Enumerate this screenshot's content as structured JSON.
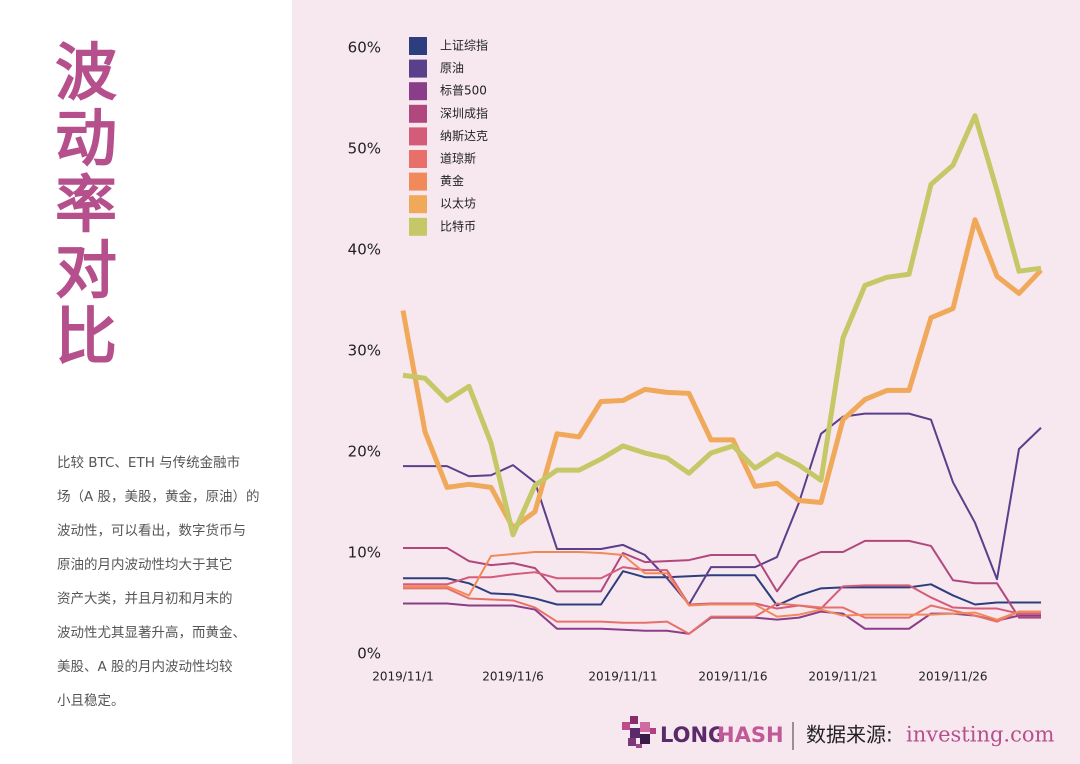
{
  "sidebar": {
    "title": "波动率对比",
    "paragraph": [
      "比较 BTC、ETH 与传统金融市",
      "场（A 股，美股，黄金，原油）的",
      "波动性，可以看出，数字货币与",
      "原油的月内波动性均大于其它",
      "资产大类，并且月初和月末的",
      "波动性尤其显著升高，而黄金、",
      "美股、A 股的月内波动性均较",
      "小且稳定。"
    ]
  },
  "footer": {
    "logo_left": "LONG",
    "logo_right": "HASH",
    "source_label": "数据来源:",
    "source": "investing.com"
  },
  "chart_data": {
    "type": "line",
    "categories": [
      "2019/11/1",
      null,
      null,
      null,
      null,
      "2019/11/6",
      null,
      null,
      null,
      null,
      "2019/11/11",
      null,
      null,
      null,
      null,
      "2019/11/16",
      null,
      null,
      null,
      null,
      "2019/11/21",
      null,
      null,
      null,
      null,
      "2019/11/26",
      null,
      null,
      null,
      null
    ],
    "ylim": [
      0,
      60
    ],
    "yticks": [
      {
        "value": 0,
        "label": "0%"
      },
      {
        "value": 10,
        "label": "10%"
      },
      {
        "value": 20,
        "label": "20%"
      },
      {
        "value": 30,
        "label": "30%"
      },
      {
        "value": 40,
        "label": "40%"
      },
      {
        "value": 50,
        "label": "50%"
      },
      {
        "value": 60,
        "label": "60%"
      }
    ],
    "legend": "top-left",
    "series": [
      {
        "name": "上证综指",
        "color": "#2d3e7e",
        "values": [
          7.5,
          7.5,
          7.5,
          7.0,
          6.0,
          5.9,
          5.5,
          4.9,
          4.9,
          4.9,
          8.2,
          7.6,
          7.6,
          7.7,
          7.8,
          7.8,
          7.8,
          4.8,
          5.8,
          6.5,
          6.6,
          6.6,
          6.6,
          6.6,
          6.9,
          5.8,
          4.9,
          5.1,
          5.1,
          5.1
        ]
      },
      {
        "name": "原油",
        "color": "#5a3f8a",
        "values": [
          18.6,
          18.6,
          18.6,
          17.6,
          17.7,
          18.7,
          17.0,
          10.4,
          10.4,
          10.4,
          10.8,
          9.8,
          7.5,
          4.9,
          8.6,
          8.6,
          8.6,
          9.6,
          15.0,
          21.8,
          23.5,
          23.8,
          23.8,
          23.8,
          23.2,
          17.0,
          13.0,
          7.4,
          20.3,
          22.4
        ]
      },
      {
        "name": "标普500",
        "color": "#8a3e8a",
        "values": [
          5.0,
          5.0,
          5.0,
          4.8,
          4.8,
          4.8,
          4.4,
          2.5,
          2.5,
          2.5,
          2.4,
          2.3,
          2.3,
          2.0,
          3.6,
          3.6,
          3.6,
          3.4,
          3.6,
          4.2,
          4.0,
          2.5,
          2.5,
          2.5,
          4.0,
          4.0,
          3.8,
          3.3,
          3.8,
          3.8
        ]
      },
      {
        "name": "深圳成指",
        "color": "#b0487e",
        "values": [
          10.5,
          10.5,
          10.5,
          9.2,
          8.8,
          9.0,
          8.5,
          6.2,
          6.2,
          6.2,
          10.0,
          9.1,
          9.2,
          9.3,
          9.8,
          9.8,
          9.8,
          6.2,
          9.2,
          10.1,
          10.1,
          11.2,
          11.2,
          11.2,
          10.7,
          7.3,
          7.0,
          7.0,
          3.6,
          3.6
        ]
      },
      {
        "name": "纳斯达克",
        "color": "#d55b7a",
        "values": [
          6.9,
          6.9,
          6.9,
          7.6,
          7.6,
          7.9,
          8.1,
          7.5,
          7.5,
          7.5,
          8.6,
          8.3,
          8.3,
          4.9,
          5.0,
          5.0,
          5.0,
          4.5,
          4.8,
          4.5,
          6.7,
          6.8,
          6.8,
          6.8,
          5.6,
          4.6,
          4.5,
          4.5,
          4.0,
          4.0
        ]
      },
      {
        "name": "道琼斯",
        "color": "#e8706a",
        "values": [
          6.5,
          6.5,
          6.5,
          5.5,
          5.4,
          5.3,
          4.6,
          3.2,
          3.2,
          3.2,
          3.1,
          3.1,
          3.2,
          2.0,
          3.7,
          3.7,
          3.7,
          5.0,
          4.8,
          4.6,
          4.6,
          3.6,
          3.6,
          3.6,
          4.8,
          4.3,
          3.8,
          3.2,
          4.2,
          4.2
        ]
      },
      {
        "name": "黄金",
        "color": "#f08a5a",
        "values": [
          6.7,
          6.7,
          6.7,
          5.8,
          9.7,
          9.9,
          10.1,
          10.1,
          10.1,
          10.0,
          9.8,
          8.0,
          8.0,
          4.8,
          4.9,
          4.9,
          4.9,
          3.7,
          3.9,
          4.4,
          3.8,
          3.9,
          3.9,
          3.9,
          3.9,
          4.0,
          4.1,
          3.4,
          4.2,
          4.2
        ]
      },
      {
        "name": "以太坊",
        "color": "#f0a95a",
        "values": [
          34.0,
          22.0,
          16.5,
          16.8,
          16.5,
          12.5,
          14.1,
          21.8,
          21.5,
          25.0,
          25.1,
          26.2,
          25.9,
          25.8,
          21.2,
          21.2,
          16.6,
          16.9,
          15.2,
          15.0,
          23.2,
          25.2,
          26.1,
          26.1,
          33.3,
          34.2,
          43.0,
          37.4,
          35.7,
          38.0
        ]
      },
      {
        "name": "比特币",
        "color": "#c5c866",
        "values": [
          27.6,
          27.3,
          25.1,
          26.5,
          20.9,
          11.8,
          16.7,
          18.2,
          18.2,
          19.3,
          20.6,
          19.9,
          19.4,
          17.9,
          19.9,
          20.6,
          18.4,
          19.8,
          18.7,
          17.2,
          31.3,
          36.5,
          37.3,
          37.6,
          46.5,
          48.4,
          53.3,
          45.9,
          37.9,
          38.2
        ]
      }
    ]
  }
}
